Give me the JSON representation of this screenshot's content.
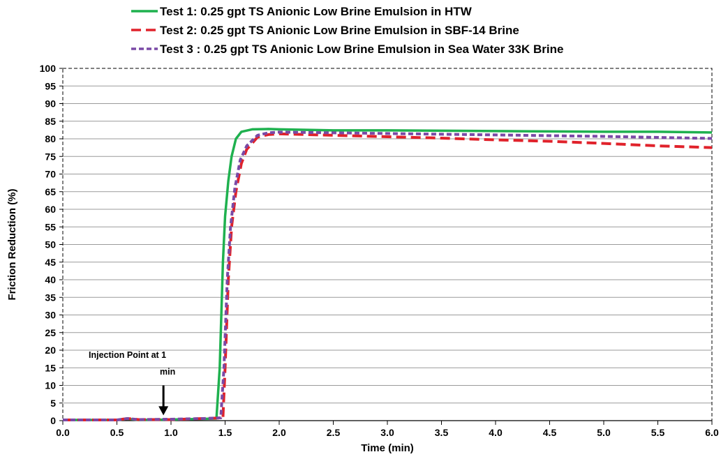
{
  "chart_data": {
    "type": "line",
    "xlabel": "Time (min)",
    "ylabel": "Friction Reduction (%)",
    "xlim": [
      0,
      6
    ],
    "ylim": [
      0,
      100
    ],
    "x_ticks": [
      "0.0",
      "0.5",
      "1.0",
      "1.5",
      "2.0",
      "2.5",
      "3.0",
      "3.5",
      "4.0",
      "4.5",
      "5.0",
      "5.5",
      "6.0"
    ],
    "y_ticks": [
      "0",
      "5",
      "10",
      "15",
      "20",
      "25",
      "30",
      "35",
      "40",
      "45",
      "50",
      "55",
      "60",
      "65",
      "70",
      "75",
      "80",
      "85",
      "90",
      "95",
      "100"
    ],
    "grid": "horizontal",
    "legend_position": "top",
    "annotation": {
      "line1": "Injection Point at 1",
      "line2": "min",
      "x": 0.93,
      "y_from": 10,
      "y_to": 1.5
    },
    "series": [
      {
        "name": "Test 1:  0.25 gpt TS Anionic Low Brine Emulsion in HTW",
        "color": "#1fb14f",
        "style": "solid",
        "points": [
          [
            0,
            0.2
          ],
          [
            0.5,
            0.2
          ],
          [
            0.6,
            0.5
          ],
          [
            0.7,
            0.2
          ],
          [
            1.0,
            0.3
          ],
          [
            1.3,
            0.5
          ],
          [
            1.42,
            0.6
          ],
          [
            1.45,
            15
          ],
          [
            1.48,
            45
          ],
          [
            1.5,
            58
          ],
          [
            1.53,
            68
          ],
          [
            1.56,
            75
          ],
          [
            1.6,
            80
          ],
          [
            1.65,
            82
          ],
          [
            1.75,
            82.7
          ],
          [
            1.9,
            82.8
          ],
          [
            2.0,
            82.7
          ],
          [
            2.5,
            82.4
          ],
          [
            3.0,
            82.4
          ],
          [
            3.5,
            82.3
          ],
          [
            4.0,
            82.2
          ],
          [
            4.5,
            82.1
          ],
          [
            5.0,
            82.0
          ],
          [
            5.5,
            82.0
          ],
          [
            6.0,
            81.8
          ]
        ]
      },
      {
        "name": "Test 2:  0.25 gpt TS Anionic Low Brine Emulsion in SBF-14 Brine",
        "color": "#e0222b",
        "style": "dashed",
        "points": [
          [
            0,
            0.2
          ],
          [
            0.5,
            0.2
          ],
          [
            0.6,
            0.6
          ],
          [
            0.7,
            0.3
          ],
          [
            1.0,
            0.3
          ],
          [
            1.3,
            0.6
          ],
          [
            1.48,
            0.8
          ],
          [
            1.5,
            15
          ],
          [
            1.53,
            40
          ],
          [
            1.56,
            55
          ],
          [
            1.6,
            65
          ],
          [
            1.65,
            73
          ],
          [
            1.7,
            77
          ],
          [
            1.8,
            80.5
          ],
          [
            1.9,
            81.2
          ],
          [
            2.0,
            81.4
          ],
          [
            2.5,
            81.0
          ],
          [
            3.0,
            80.6
          ],
          [
            3.5,
            80.2
          ],
          [
            4.0,
            79.7
          ],
          [
            4.5,
            79.3
          ],
          [
            5.0,
            78.7
          ],
          [
            5.5,
            78.0
          ],
          [
            6.0,
            77.5
          ]
        ]
      },
      {
        "name": "Test 3 :  0.25 gpt TS Anionic Low Brine Emulsion in Sea Water 33K Brine",
        "color": "#7a4aa6",
        "style": "dotted",
        "points": [
          [
            0,
            0.2
          ],
          [
            0.5,
            0.2
          ],
          [
            0.6,
            0.6
          ],
          [
            0.7,
            0.3
          ],
          [
            1.0,
            0.4
          ],
          [
            1.3,
            0.6
          ],
          [
            1.46,
            0.8
          ],
          [
            1.49,
            15
          ],
          [
            1.52,
            40
          ],
          [
            1.55,
            55
          ],
          [
            1.59,
            66
          ],
          [
            1.64,
            74
          ],
          [
            1.7,
            78
          ],
          [
            1.8,
            81
          ],
          [
            1.9,
            81.7
          ],
          [
            2.0,
            81.9
          ],
          [
            2.5,
            81.7
          ],
          [
            3.0,
            81.5
          ],
          [
            3.5,
            81.3
          ],
          [
            4.0,
            81.1
          ],
          [
            4.5,
            80.9
          ],
          [
            5.0,
            80.7
          ],
          [
            5.5,
            80.4
          ],
          [
            6.0,
            80.1
          ]
        ]
      }
    ]
  }
}
